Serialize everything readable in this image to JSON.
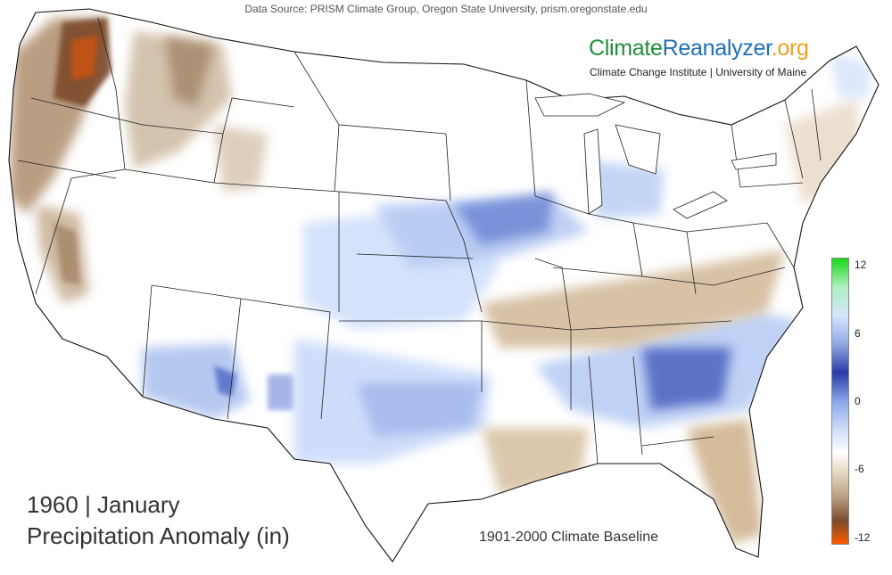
{
  "header": {
    "source": "Data Source: PRISM Climate Group, Oregon State University, prism.oregonstate.edu"
  },
  "brand": {
    "part1": "Climate",
    "part2": "Reanalyzer",
    "part3": ".org",
    "subtitle": "Climate Change Institute | University of Maine",
    "colors": {
      "part1": "#1f8f3a",
      "part2": "#1f6fb5",
      "part3": "#f0a020"
    }
  },
  "title": {
    "year_month": "1960 | January",
    "variable": "Precipitation Anomaly (in)"
  },
  "baseline": "1901-2000 Climate Baseline",
  "legend": {
    "ticks": [
      "12",
      "6",
      "0",
      "-6",
      "-12"
    ],
    "colors": {
      "wet_extreme": "#18d818",
      "wet": "#2a3aa8",
      "neutral": "#ffffff",
      "dry": "#b89c80",
      "dry_extreme": "#ff5a00"
    }
  }
}
